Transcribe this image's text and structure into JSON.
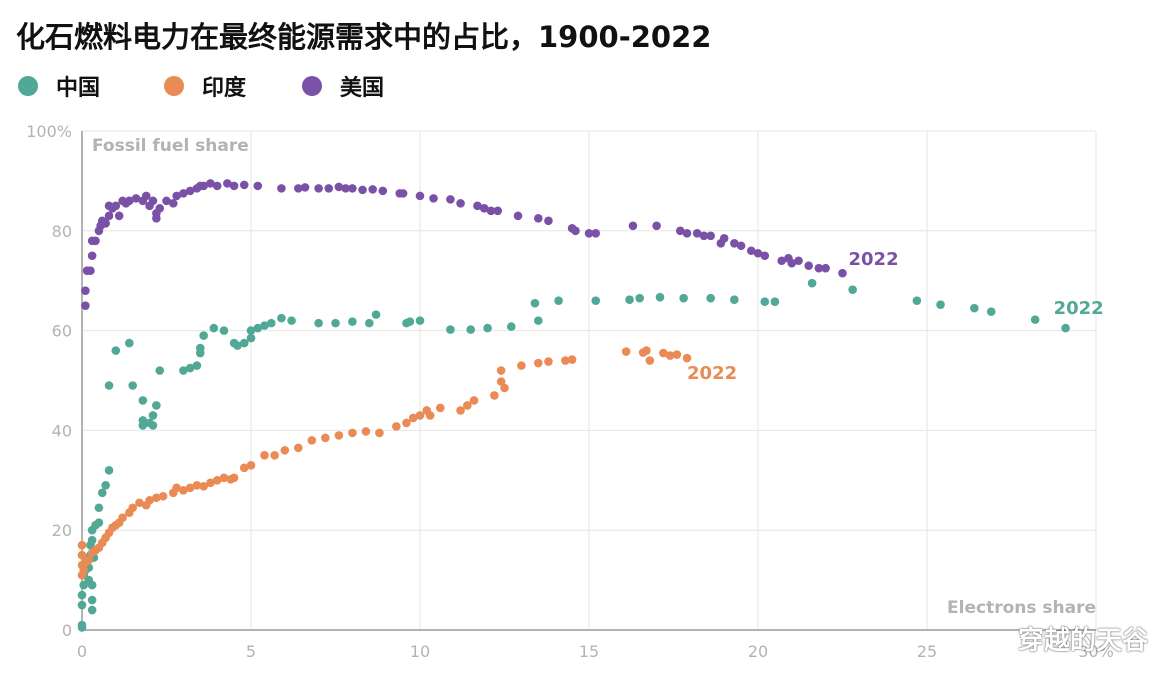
{
  "title": "化石燃料电力在最终能源需求中的占比，1900-2022",
  "legend": [
    {
      "label": "中国",
      "color": "#52a896"
    },
    {
      "label": "印度",
      "color": "#ea8a54"
    },
    {
      "label": "美国",
      "color": "#7b51a8"
    }
  ],
  "watermark": "穿越的天谷",
  "chart_data": {
    "type": "scatter",
    "xlabel": "Electrons share",
    "ylabel": "Fossil fuel share",
    "xlim": [
      0,
      30
    ],
    "ylim": [
      0,
      100
    ],
    "x_ticks": [
      0,
      5,
      10,
      15,
      20,
      25,
      30
    ],
    "x_tick_labels": [
      "0",
      "5",
      "10",
      "15",
      "20",
      "25",
      "30%"
    ],
    "y_ticks": [
      0,
      20,
      40,
      60,
      80,
      100
    ],
    "y_tick_labels": [
      "0",
      "20",
      "40",
      "60",
      "80",
      "100%"
    ],
    "grid": true,
    "series": [
      {
        "name": "中国",
        "color": "#52a896",
        "end_label": "2022",
        "points": [
          [
            0.0,
            0.5
          ],
          [
            0.0,
            1.0
          ],
          [
            0.0,
            5.0
          ],
          [
            0.0,
            7.0
          ],
          [
            0.05,
            9.0
          ],
          [
            0.05,
            11.0
          ],
          [
            0.1,
            13.0
          ],
          [
            0.1,
            12.0
          ],
          [
            0.15,
            14.0
          ],
          [
            0.2,
            10.0
          ],
          [
            0.2,
            12.5
          ],
          [
            0.25,
            15.0
          ],
          [
            0.25,
            17.0
          ],
          [
            0.3,
            18.0
          ],
          [
            0.3,
            20.0
          ],
          [
            0.35,
            14.5
          ],
          [
            0.3,
            9.0
          ],
          [
            0.3,
            6.0
          ],
          [
            0.3,
            4.0
          ],
          [
            0.4,
            21.0
          ],
          [
            0.5,
            21.5
          ],
          [
            0.5,
            24.5
          ],
          [
            0.6,
            27.5
          ],
          [
            0.7,
            29.0
          ],
          [
            0.8,
            32.0
          ],
          [
            0.8,
            49.0
          ],
          [
            1.0,
            56.0
          ],
          [
            1.4,
            57.5
          ],
          [
            1.5,
            49.0
          ],
          [
            1.8,
            46.0
          ],
          [
            1.8,
            42.0
          ],
          [
            1.8,
            41.0
          ],
          [
            2.0,
            41.5
          ],
          [
            2.1,
            41.0
          ],
          [
            2.1,
            43.0
          ],
          [
            2.2,
            45.0
          ],
          [
            2.3,
            52.0
          ],
          [
            3.0,
            52.0
          ],
          [
            3.2,
            52.5
          ],
          [
            3.4,
            53.0
          ],
          [
            3.5,
            55.5
          ],
          [
            3.5,
            56.5
          ],
          [
            3.6,
            59.0
          ],
          [
            3.9,
            60.5
          ],
          [
            4.2,
            60.0
          ],
          [
            4.5,
            57.5
          ],
          [
            4.6,
            57.0
          ],
          [
            4.8,
            57.5
          ],
          [
            5.0,
            58.5
          ],
          [
            5.0,
            60.0
          ],
          [
            5.2,
            60.5
          ],
          [
            5.4,
            61.0
          ],
          [
            5.6,
            61.5
          ],
          [
            5.9,
            62.5
          ],
          [
            6.2,
            62.0
          ],
          [
            7.0,
            61.5
          ],
          [
            7.5,
            61.5
          ],
          [
            8.0,
            61.8
          ],
          [
            8.5,
            61.5
          ],
          [
            8.7,
            63.2
          ],
          [
            9.6,
            61.5
          ],
          [
            9.7,
            61.8
          ],
          [
            10.0,
            62.0
          ],
          [
            10.9,
            60.2
          ],
          [
            11.5,
            60.2
          ],
          [
            12.0,
            60.5
          ],
          [
            12.7,
            60.8
          ],
          [
            13.4,
            65.5
          ],
          [
            13.5,
            62.0
          ],
          [
            14.1,
            66.0
          ],
          [
            15.2,
            66.0
          ],
          [
            16.2,
            66.2
          ],
          [
            16.5,
            66.5
          ],
          [
            17.1,
            66.7
          ],
          [
            17.8,
            66.5
          ],
          [
            18.6,
            66.5
          ],
          [
            19.3,
            66.2
          ],
          [
            20.2,
            65.8
          ],
          [
            20.5,
            65.8
          ],
          [
            21.6,
            69.5
          ],
          [
            22.8,
            68.2
          ],
          [
            24.7,
            66.0
          ],
          [
            25.4,
            65.2
          ],
          [
            26.4,
            64.5
          ],
          [
            26.9,
            63.8
          ],
          [
            28.2,
            62.2
          ],
          [
            29.1,
            60.5
          ]
        ]
      },
      {
        "name": "印度",
        "color": "#ea8a54",
        "end_label": "2022",
        "points": [
          [
            0.0,
            17.0
          ],
          [
            0.0,
            15.0
          ],
          [
            0.0,
            13.0
          ],
          [
            0.0,
            11.0
          ],
          [
            0.05,
            12.0
          ],
          [
            0.1,
            13.5
          ],
          [
            0.2,
            14.0
          ],
          [
            0.3,
            15.5
          ],
          [
            0.4,
            16.0
          ],
          [
            0.5,
            16.5
          ],
          [
            0.6,
            17.5
          ],
          [
            0.7,
            18.5
          ],
          [
            0.8,
            19.5
          ],
          [
            0.9,
            20.5
          ],
          [
            1.0,
            21.0
          ],
          [
            1.1,
            21.5
          ],
          [
            1.2,
            22.5
          ],
          [
            1.4,
            23.5
          ],
          [
            1.5,
            24.5
          ],
          [
            1.7,
            25.5
          ],
          [
            1.9,
            25.0
          ],
          [
            2.0,
            26.0
          ],
          [
            2.2,
            26.5
          ],
          [
            2.4,
            26.8
          ],
          [
            2.7,
            27.5
          ],
          [
            2.8,
            28.5
          ],
          [
            3.0,
            28.0
          ],
          [
            3.2,
            28.5
          ],
          [
            3.4,
            29.0
          ],
          [
            3.6,
            28.8
          ],
          [
            3.8,
            29.5
          ],
          [
            4.0,
            30.0
          ],
          [
            4.2,
            30.5
          ],
          [
            4.4,
            30.2
          ],
          [
            4.5,
            30.5
          ],
          [
            4.8,
            32.5
          ],
          [
            5.0,
            33.0
          ],
          [
            5.4,
            35.0
          ],
          [
            5.7,
            35.0
          ],
          [
            6.0,
            36.0
          ],
          [
            6.4,
            36.5
          ],
          [
            6.8,
            38.0
          ],
          [
            7.2,
            38.5
          ],
          [
            7.6,
            39.0
          ],
          [
            8.0,
            39.5
          ],
          [
            8.4,
            39.8
          ],
          [
            8.8,
            39.5
          ],
          [
            9.3,
            40.8
          ],
          [
            9.6,
            41.5
          ],
          [
            9.8,
            42.5
          ],
          [
            10.0,
            43.0
          ],
          [
            10.2,
            44.0
          ],
          [
            10.3,
            43.0
          ],
          [
            10.6,
            44.5
          ],
          [
            11.2,
            44.0
          ],
          [
            11.4,
            45.0
          ],
          [
            11.6,
            46.0
          ],
          [
            12.2,
            47.0
          ],
          [
            12.4,
            49.8
          ],
          [
            12.4,
            52.0
          ],
          [
            12.5,
            48.5
          ],
          [
            13.0,
            53.0
          ],
          [
            13.5,
            53.5
          ],
          [
            13.8,
            53.8
          ],
          [
            14.3,
            54.0
          ],
          [
            14.5,
            54.2
          ],
          [
            16.1,
            55.8
          ],
          [
            16.6,
            55.6
          ],
          [
            16.7,
            56.0
          ],
          [
            16.8,
            54.0
          ],
          [
            17.2,
            55.5
          ],
          [
            17.4,
            55.0
          ],
          [
            17.6,
            55.2
          ],
          [
            17.9,
            54.5
          ]
        ]
      },
      {
        "name": "美国",
        "color": "#7b51a8",
        "end_label": "2022",
        "points": [
          [
            0.1,
            65.0
          ],
          [
            0.1,
            68.0
          ],
          [
            0.15,
            72.0
          ],
          [
            0.25,
            72.0
          ],
          [
            0.3,
            75.0
          ],
          [
            0.3,
            78.0
          ],
          [
            0.4,
            78.0
          ],
          [
            0.5,
            80.0
          ],
          [
            0.55,
            81.0
          ],
          [
            0.6,
            82.0
          ],
          [
            0.7,
            81.5
          ],
          [
            0.8,
            83.0
          ],
          [
            0.8,
            85.0
          ],
          [
            0.9,
            84.5
          ],
          [
            1.0,
            85.0
          ],
          [
            1.1,
            83.0
          ],
          [
            1.2,
            86.0
          ],
          [
            1.3,
            85.5
          ],
          [
            1.4,
            86.0
          ],
          [
            1.6,
            86.5
          ],
          [
            1.8,
            86.0
          ],
          [
            1.9,
            87.0
          ],
          [
            2.0,
            85.0
          ],
          [
            2.1,
            86.0
          ],
          [
            2.2,
            83.5
          ],
          [
            2.2,
            82.5
          ],
          [
            2.3,
            84.5
          ],
          [
            2.5,
            86.0
          ],
          [
            2.7,
            85.5
          ],
          [
            2.8,
            87.0
          ],
          [
            3.0,
            87.5
          ],
          [
            3.2,
            88.0
          ],
          [
            3.4,
            88.5
          ],
          [
            3.5,
            89.0
          ],
          [
            3.6,
            89.0
          ],
          [
            3.8,
            89.5
          ],
          [
            4.0,
            89.0
          ],
          [
            4.3,
            89.5
          ],
          [
            4.5,
            89.0
          ],
          [
            4.8,
            89.2
          ],
          [
            5.2,
            89.0
          ],
          [
            5.9,
            88.5
          ],
          [
            6.4,
            88.5
          ],
          [
            6.6,
            88.7
          ],
          [
            7.0,
            88.5
          ],
          [
            7.3,
            88.5
          ],
          [
            7.6,
            88.8
          ],
          [
            7.8,
            88.5
          ],
          [
            8.0,
            88.5
          ],
          [
            8.3,
            88.2
          ],
          [
            8.6,
            88.3
          ],
          [
            8.9,
            88.0
          ],
          [
            9.4,
            87.5
          ],
          [
            9.5,
            87.5
          ],
          [
            10.0,
            87.0
          ],
          [
            10.4,
            86.5
          ],
          [
            10.9,
            86.3
          ],
          [
            11.2,
            85.5
          ],
          [
            11.7,
            85.0
          ],
          [
            11.9,
            84.5
          ],
          [
            12.1,
            84.0
          ],
          [
            12.3,
            84.0
          ],
          [
            12.9,
            83.0
          ],
          [
            13.5,
            82.5
          ],
          [
            13.8,
            82.0
          ],
          [
            14.5,
            80.5
          ],
          [
            14.6,
            80.0
          ],
          [
            15.0,
            79.5
          ],
          [
            15.2,
            79.5
          ],
          [
            16.3,
            81.0
          ],
          [
            17.0,
            81.0
          ],
          [
            17.7,
            80.0
          ],
          [
            17.9,
            79.5
          ],
          [
            18.2,
            79.5
          ],
          [
            18.4,
            79.0
          ],
          [
            18.6,
            79.0
          ],
          [
            18.9,
            77.5
          ],
          [
            19.0,
            78.5
          ],
          [
            19.3,
            77.5
          ],
          [
            19.5,
            77.0
          ],
          [
            19.8,
            76.0
          ],
          [
            20.0,
            75.5
          ],
          [
            20.2,
            75.0
          ],
          [
            20.7,
            74.0
          ],
          [
            20.9,
            74.5
          ],
          [
            21.0,
            73.5
          ],
          [
            21.2,
            74.0
          ],
          [
            21.5,
            73.0
          ],
          [
            21.8,
            72.5
          ],
          [
            22.0,
            72.5
          ],
          [
            22.5,
            71.5
          ]
        ]
      }
    ]
  }
}
